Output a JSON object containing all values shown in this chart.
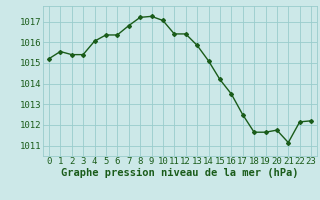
{
  "x": [
    0,
    1,
    2,
    3,
    4,
    5,
    6,
    7,
    8,
    9,
    10,
    11,
    12,
    13,
    14,
    15,
    16,
    17,
    18,
    19,
    20,
    21,
    22,
    23
  ],
  "y": [
    1015.2,
    1015.55,
    1015.4,
    1015.4,
    1016.05,
    1016.35,
    1016.35,
    1016.8,
    1017.2,
    1017.25,
    1017.05,
    1016.4,
    1016.4,
    1015.85,
    1015.1,
    1014.2,
    1013.5,
    1012.5,
    1011.65,
    1011.65,
    1011.75,
    1011.15,
    1012.15,
    1012.2
  ],
  "line_color": "#1a5c1a",
  "marker": "D",
  "marker_size": 2.0,
  "line_width": 1.0,
  "bg_color": "#cce8e8",
  "grid_color": "#99cccc",
  "xlabel": "Graphe pression niveau de la mer (hPa)",
  "xlabel_color": "#1a5c1a",
  "xlabel_fontsize": 7.5,
  "xtick_labels": [
    "0",
    "1",
    "2",
    "3",
    "4",
    "5",
    "6",
    "7",
    "8",
    "9",
    "10",
    "11",
    "12",
    "13",
    "14",
    "15",
    "16",
    "17",
    "18",
    "19",
    "20",
    "21",
    "22",
    "23"
  ],
  "ytick_values": [
    1011,
    1012,
    1013,
    1014,
    1015,
    1016,
    1017
  ],
  "ylim": [
    1010.5,
    1017.75
  ],
  "xlim": [
    -0.5,
    23.5
  ],
  "tick_color": "#1a5c1a",
  "tick_fontsize": 6.5,
  "ytick_fontsize": 6.5
}
